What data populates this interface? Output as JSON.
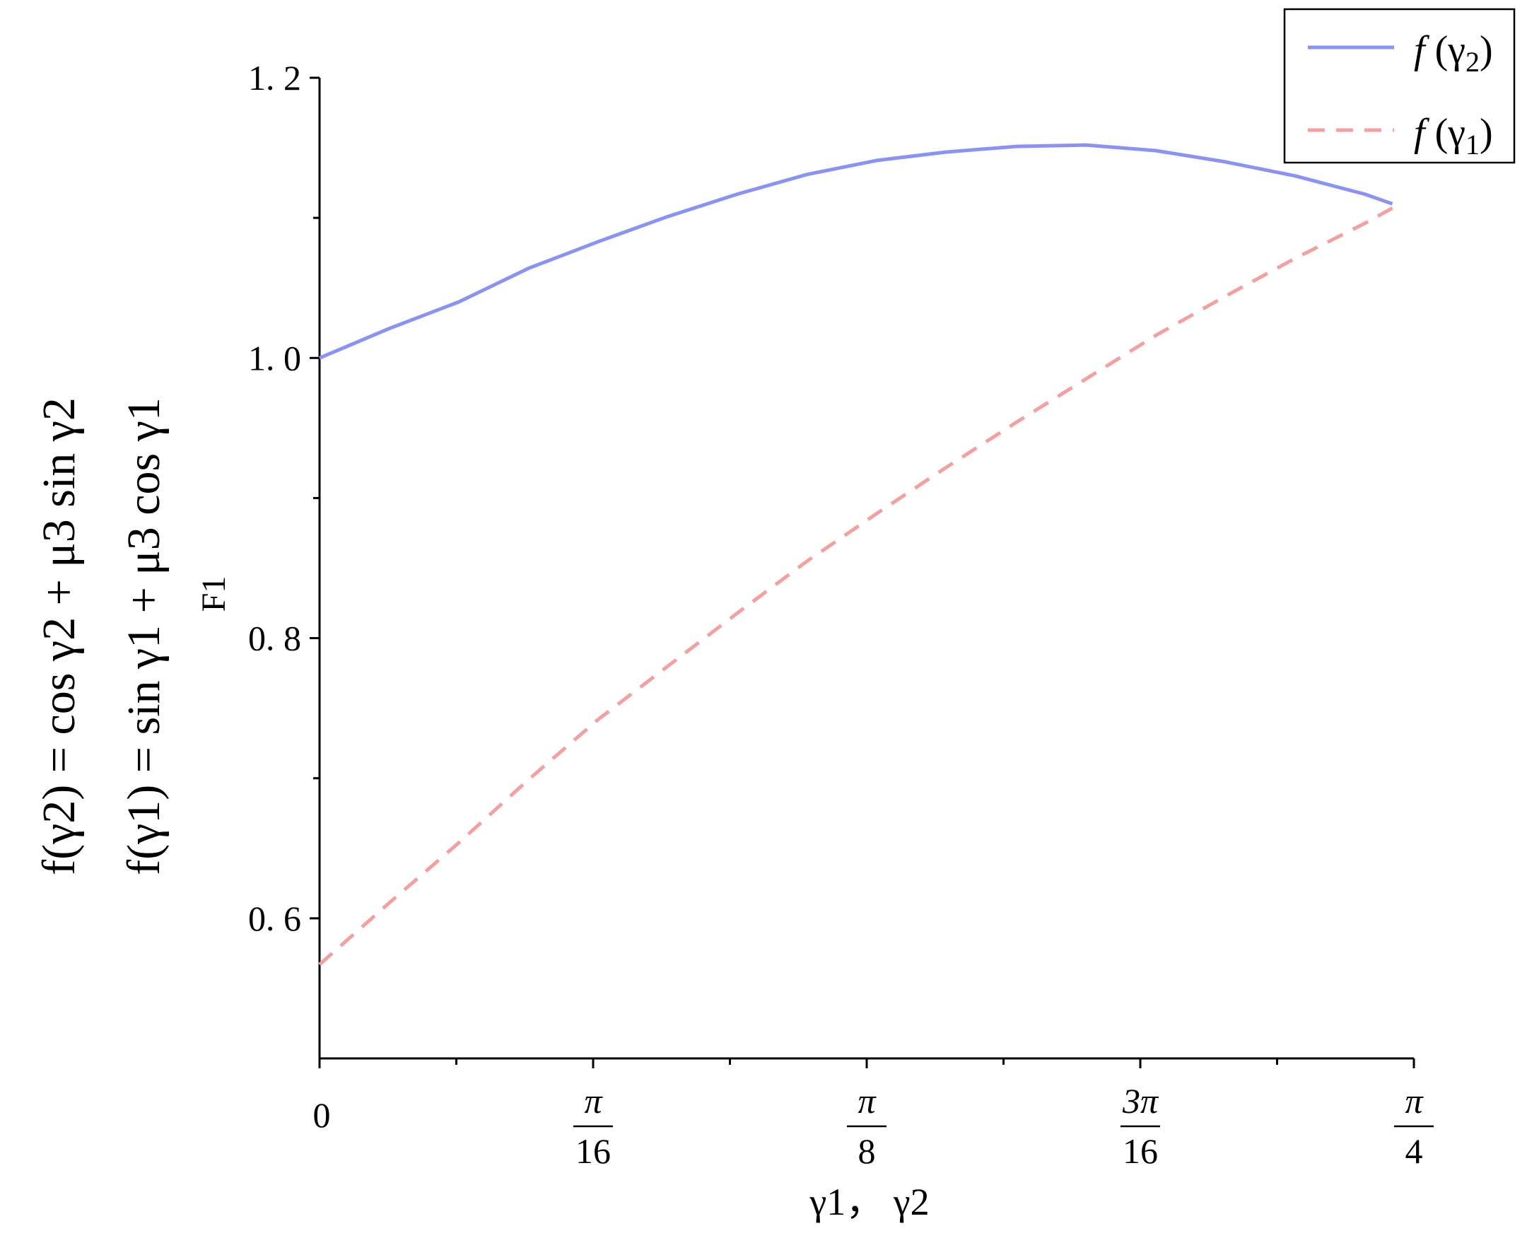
{
  "chart_data": {
    "type": "line",
    "title": "",
    "xlabel": "γ1， γ2",
    "ylabel_lines": [
      "f(γ2) = cos γ2 + μ3 sin γ2",
      "f(γ1) = sin γ1 + μ3 cos γ1",
      "F1"
    ],
    "xlim": [
      0,
      0.7854
    ],
    "ylim": [
      0.5,
      1.2
    ],
    "x_ticks": [
      {
        "value": 0,
        "label": "0"
      },
      {
        "value": 0.19635,
        "numerator": "π",
        "denominator": "16"
      },
      {
        "value": 0.3927,
        "numerator": "π",
        "denominator": "8"
      },
      {
        "value": 0.58905,
        "numerator": "3π",
        "denominator": "16"
      },
      {
        "value": 0.7854,
        "numerator": "π",
        "denominator": "4"
      }
    ],
    "y_ticks": [
      {
        "value": 0.6,
        "label": "0. 6"
      },
      {
        "value": 0.8,
        "label": "0. 8"
      },
      {
        "value": 1.0,
        "label": "1. 0"
      },
      {
        "value": 1.2,
        "label": "1. 2"
      }
    ],
    "grid": false,
    "legend_position": "top-right",
    "series": [
      {
        "name": "f(γ2)",
        "legend_func": "f",
        "legend_arg": "γ",
        "legend_sub": "2",
        "color": "#8a93f5",
        "dash": "solid",
        "x": [
          0,
          0.05,
          0.1,
          0.15,
          0.2,
          0.25,
          0.3,
          0.35,
          0.4,
          0.45,
          0.5,
          0.55,
          0.6,
          0.65,
          0.7,
          0.75,
          0.77
        ],
        "y": [
          1.0,
          1.021,
          1.04,
          1.064,
          1.083,
          1.101,
          1.117,
          1.131,
          1.141,
          1.147,
          1.151,
          1.152,
          1.148,
          1.14,
          1.13,
          1.117,
          1.11
        ]
      },
      {
        "name": "f(γ1)",
        "legend_func": "f",
        "legend_arg": "γ",
        "legend_sub": "1",
        "color": "#f4a0a0",
        "dash": "dashed",
        "x": [
          0,
          0.05,
          0.1,
          0.15,
          0.2,
          0.25,
          0.3,
          0.35,
          0.4,
          0.45,
          0.5,
          0.55,
          0.6,
          0.65,
          0.7,
          0.75,
          0.77
        ],
        "y": [
          0.567,
          0.611,
          0.654,
          0.699,
          0.742,
          0.78,
          0.818,
          0.855,
          0.889,
          0.922,
          0.954,
          0.985,
          1.016,
          1.044,
          1.071,
          1.096,
          1.107
        ]
      }
    ]
  }
}
